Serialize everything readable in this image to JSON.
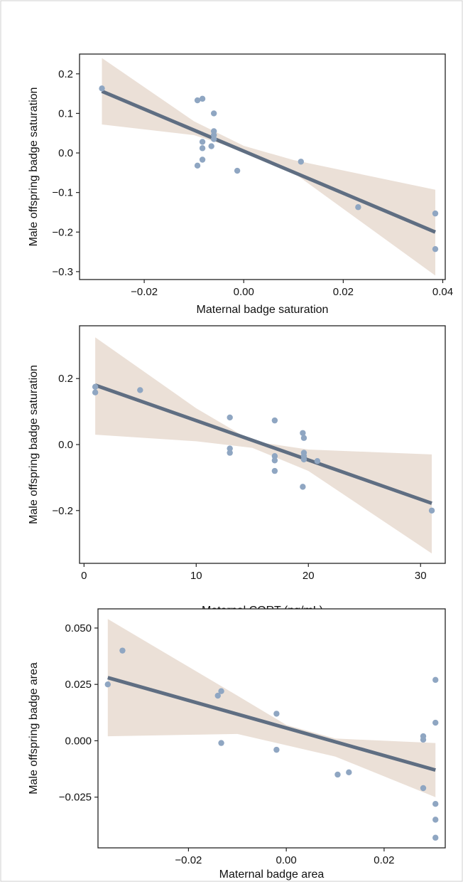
{
  "colors": {
    "point": "#8fa6c2",
    "fit_line": "#5f6e82",
    "ci_band": "#e8dbd0",
    "frame": "#222222",
    "border": "#cfcfcf"
  },
  "chart_data": [
    {
      "type": "scatter",
      "xlabel": "Maternal badge saturation",
      "ylabel": "Male offspring badge saturation",
      "xlim": [
        -0.033,
        0.0405
      ],
      "ylim": [
        -0.32,
        0.25
      ],
      "xticks": [
        -0.02,
        0.0,
        0.02,
        0.04
      ],
      "xtick_labels": [
        "−0.02",
        "0.00",
        "0.02",
        "0.04"
      ],
      "yticks": [
        -0.3,
        -0.2,
        -0.1,
        0.0,
        0.1,
        0.2
      ],
      "ytick_labels": [
        "−0.3",
        "−0.2",
        "−0.1",
        "0.0",
        "0.1",
        "0.2"
      ],
      "grid": false,
      "points": [
        {
          "x": -0.0285,
          "y": 0.163
        },
        {
          "x": -0.0093,
          "y": 0.133
        },
        {
          "x": -0.0083,
          "y": 0.137
        },
        {
          "x": -0.006,
          "y": 0.1
        },
        {
          "x": -0.006,
          "y": 0.055
        },
        {
          "x": -0.006,
          "y": 0.045
        },
        {
          "x": -0.006,
          "y": 0.035
        },
        {
          "x": -0.0083,
          "y": 0.028
        },
        {
          "x": -0.0065,
          "y": 0.017
        },
        {
          "x": -0.0083,
          "y": 0.012
        },
        {
          "x": -0.0083,
          "y": -0.017
        },
        {
          "x": -0.0093,
          "y": -0.032
        },
        {
          "x": -0.0013,
          "y": -0.045
        },
        {
          "x": 0.0115,
          "y": -0.022
        },
        {
          "x": 0.023,
          "y": -0.137
        },
        {
          "x": 0.0385,
          "y": -0.153
        },
        {
          "x": 0.0385,
          "y": -0.243
        }
      ],
      "fit": {
        "x0": -0.0285,
        "y0": 0.156,
        "x1": 0.0385,
        "y1": -0.2
      },
      "band": {
        "x": [
          -0.0285,
          -0.01,
          0.0,
          0.01,
          0.0385
        ],
        "upper": [
          0.24,
          0.08,
          0.018,
          -0.018,
          -0.093
        ],
        "lower": [
          0.072,
          0.045,
          0.005,
          -0.05,
          -0.31
        ]
      }
    },
    {
      "type": "scatter",
      "xlabel": "Maternal CORT (ng/mL)",
      "ylabel": "Male offspring badge saturation",
      "xlim": [
        -0.4,
        32.2
      ],
      "ylim": [
        -0.36,
        0.36
      ],
      "xticks": [
        0,
        10,
        20,
        30
      ],
      "xtick_labels": [
        "0",
        "10",
        "20",
        "30"
      ],
      "yticks": [
        -0.2,
        0.0,
        0.2
      ],
      "ytick_labels": [
        "−0.2",
        "0.0",
        "0.2"
      ],
      "grid": false,
      "points": [
        {
          "x": 1.0,
          "y": 0.175
        },
        {
          "x": 1.0,
          "y": 0.158
        },
        {
          "x": 5.0,
          "y": 0.165
        },
        {
          "x": 13.0,
          "y": 0.082
        },
        {
          "x": 13.0,
          "y": -0.012
        },
        {
          "x": 13.0,
          "y": -0.025
        },
        {
          "x": 17.0,
          "y": 0.073
        },
        {
          "x": 17.0,
          "y": -0.035
        },
        {
          "x": 17.0,
          "y": -0.048
        },
        {
          "x": 17.0,
          "y": -0.08
        },
        {
          "x": 19.5,
          "y": 0.035
        },
        {
          "x": 19.6,
          "y": 0.02
        },
        {
          "x": 19.6,
          "y": -0.025
        },
        {
          "x": 19.6,
          "y": -0.035
        },
        {
          "x": 19.6,
          "y": -0.045
        },
        {
          "x": 20.8,
          "y": -0.05
        },
        {
          "x": 19.5,
          "y": -0.128
        },
        {
          "x": 31.0,
          "y": -0.2
        }
      ],
      "fit": {
        "x0": 1.0,
        "y0": 0.18,
        "x1": 31.0,
        "y1": -0.178
      },
      "band": {
        "x": [
          1.0,
          10.0,
          15.0,
          20.0,
          31.0
        ],
        "upper": [
          0.325,
          0.11,
          0.01,
          -0.015,
          -0.03
        ],
        "lower": [
          0.03,
          0.01,
          -0.01,
          -0.08,
          -0.33
        ]
      }
    },
    {
      "type": "scatter",
      "xlabel": "Maternal badge area",
      "ylabel": "Male offspring badge area",
      "xlim": [
        -0.0385,
        0.0325
      ],
      "ylim": [
        -0.0475,
        0.0585
      ],
      "xticks": [
        -0.02,
        0.0,
        0.02
      ],
      "xtick_labels": [
        "−0.02",
        "0.00",
        "0.02"
      ],
      "yticks": [
        -0.025,
        0.0,
        0.025,
        0.05
      ],
      "ytick_labels": [
        "−0.025",
        "0.000",
        "0.025",
        "0.050"
      ],
      "grid": false,
      "points": [
        {
          "x": -0.0365,
          "y": 0.025
        },
        {
          "x": -0.0335,
          "y": 0.04
        },
        {
          "x": -0.014,
          "y": 0.02
        },
        {
          "x": -0.0133,
          "y": 0.022
        },
        {
          "x": -0.0133,
          "y": -0.001
        },
        {
          "x": -0.002,
          "y": 0.012
        },
        {
          "x": -0.002,
          "y": -0.004
        },
        {
          "x": 0.0105,
          "y": -0.015
        },
        {
          "x": 0.0128,
          "y": -0.014
        },
        {
          "x": 0.028,
          "y": 0.002
        },
        {
          "x": 0.028,
          "y": 0.0005
        },
        {
          "x": 0.028,
          "y": -0.021
        },
        {
          "x": 0.0305,
          "y": 0.027
        },
        {
          "x": 0.0305,
          "y": 0.008
        },
        {
          "x": 0.0305,
          "y": -0.028
        },
        {
          "x": 0.0305,
          "y": -0.035
        },
        {
          "x": 0.0305,
          "y": -0.043
        }
      ],
      "fit": {
        "x0": -0.0365,
        "y0": 0.028,
        "x1": 0.0305,
        "y1": -0.013
      },
      "band": {
        "x": [
          -0.0365,
          -0.01,
          0.0,
          0.01,
          0.0305
        ],
        "upper": [
          0.054,
          0.02,
          0.007,
          0.001,
          -0.001
        ],
        "lower": [
          0.002,
          0.003,
          -0.002,
          -0.007,
          -0.025
        ]
      }
    }
  ]
}
